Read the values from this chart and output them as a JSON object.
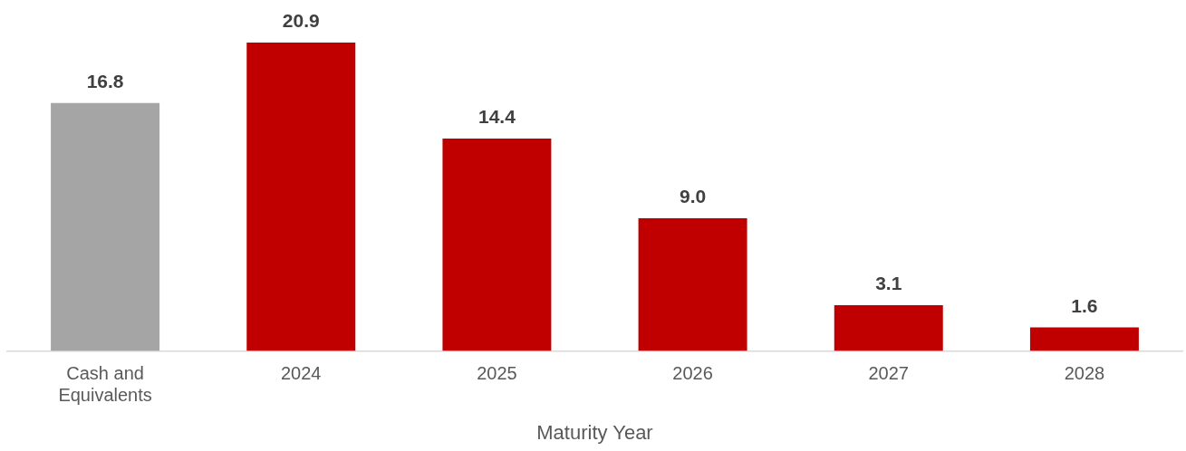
{
  "chart_data": {
    "type": "bar",
    "xlabel": "Maturity Year",
    "categories": [
      "Cash and Equivalents",
      "2024",
      "2025",
      "2026",
      "2027",
      "2028"
    ],
    "values": [
      16.8,
      20.9,
      14.4,
      9.0,
      3.1,
      1.6
    ],
    "colors": [
      "#a5a5a5",
      "#c00000",
      "#c00000",
      "#c00000",
      "#c00000",
      "#c00000"
    ],
    "value_labels": [
      "16.8",
      "20.9",
      "14.4",
      "9.0",
      "3.1",
      "1.6"
    ],
    "grid": false,
    "legend": false
  }
}
